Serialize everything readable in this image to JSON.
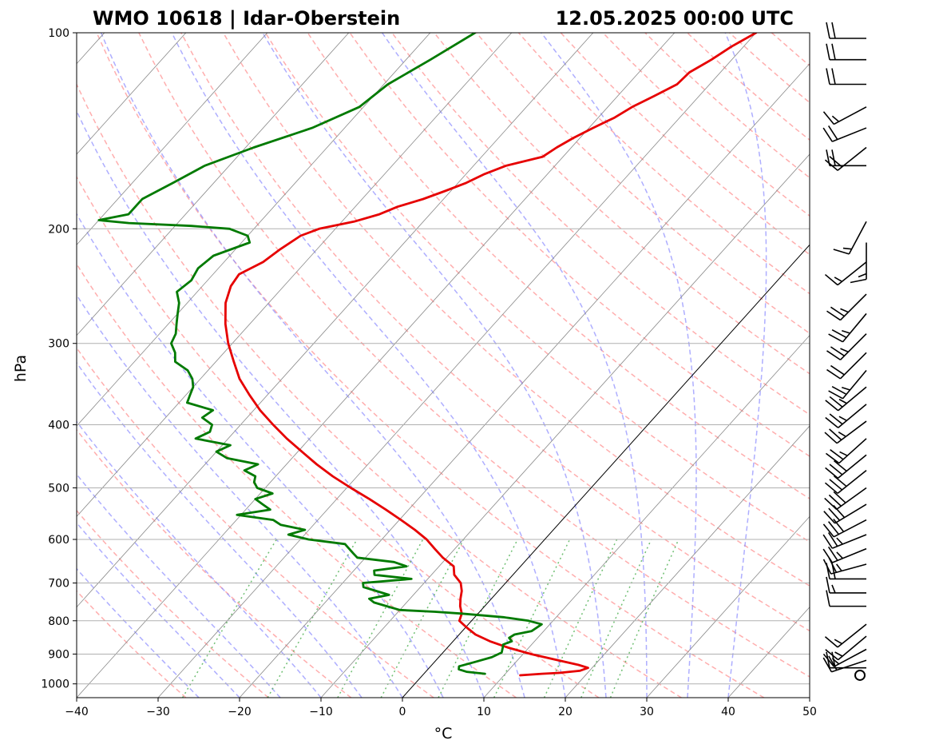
{
  "title_left": "WMO 10618 | Idar-Oberstein",
  "title_right": "12.05.2025 00:00 UTC",
  "chart_data": {
    "type": "line",
    "title": "WMO 10618 | Idar-Oberstein",
    "subtitle": "12.05.2025 00:00 UTC",
    "xlabel": "°C",
    "ylabel": "hPa",
    "xlim": [
      -40,
      50
    ],
    "ylim": [
      1050,
      100
    ],
    "y_scale": "log",
    "x_ticks": [
      "−40",
      "−30",
      "−20",
      "−10",
      "0",
      "10",
      "20",
      "30",
      "40",
      "50"
    ],
    "y_ticks": [
      "100",
      "200",
      "300",
      "400",
      "500",
      "600",
      "700",
      "800",
      "900",
      "1000"
    ],
    "grid": true,
    "colors": {
      "temperature": "#e60000",
      "dewpoint": "#007a00",
      "dry_adiabats": "#ff8c8c",
      "moist_adiabats": "#8c8cff",
      "mixing_ratio": "#4caf50",
      "isotherms": "#888888",
      "zero_isotherm": "#000000"
    },
    "series": [
      {
        "role": "temperature",
        "pressure": [
          970,
          965,
          962,
          955,
          945,
          935,
          920,
          900,
          880,
          860,
          840,
          820,
          800,
          780,
          760,
          740,
          720,
          700,
          680,
          660,
          640,
          620,
          600,
          580,
          560,
          540,
          520,
          500,
          480,
          460,
          440,
          420,
          400,
          380,
          360,
          340,
          320,
          300,
          280,
          260,
          245,
          235,
          225,
          215,
          205,
          200,
          195,
          190,
          185,
          180,
          175,
          170,
          165,
          160,
          155,
          150,
          145,
          140,
          135,
          130,
          125,
          120,
          115,
          110,
          105,
          100
        ],
        "values": [
          12.0,
          14.5,
          16.5,
          18.8,
          19.5,
          18.0,
          15.0,
          11.0,
          7.5,
          4.5,
          2.0,
          0.2,
          -1.5,
          -2.0,
          -3.0,
          -3.8,
          -4.5,
          -5.5,
          -7.2,
          -8.2,
          -10.5,
          -12.5,
          -14.5,
          -17.0,
          -19.8,
          -22.8,
          -26.0,
          -29.5,
          -33.0,
          -36.3,
          -39.5,
          -42.8,
          -46.0,
          -49.2,
          -52.2,
          -55.2,
          -57.8,
          -60.5,
          -63.0,
          -65.3,
          -66.5,
          -66.8,
          -65.2,
          -64.5,
          -63.5,
          -62.0,
          -58.5,
          -56.2,
          -54.8,
          -52.5,
          -50.7,
          -49.0,
          -47.8,
          -46.0,
          -42.5,
          -41.8,
          -40.8,
          -39.5,
          -38.0,
          -37.0,
          -35.5,
          -34.0,
          -33.8,
          -32.5,
          -31.5,
          -30.0
        ]
      },
      {
        "role": "dewpoint",
        "pressure": [
          965,
          958,
          950,
          940,
          925,
          910,
          895,
          880,
          870,
          860,
          850,
          840,
          830,
          810,
          800,
          790,
          780,
          775,
          770,
          760,
          750,
          740,
          730,
          720,
          710,
          700,
          690,
          680,
          670,
          660,
          650,
          640,
          630,
          620,
          610,
          600,
          590,
          580,
          570,
          560,
          550,
          540,
          530,
          520,
          510,
          500,
          490,
          480,
          470,
          460,
          450,
          440,
          430,
          420,
          410,
          400,
          390,
          380,
          370,
          360,
          350,
          340,
          330,
          320,
          310,
          300,
          290,
          280,
          270,
          260,
          250,
          240,
          230,
          220,
          210,
          205,
          200,
          198,
          196,
          194,
          190,
          180,
          170,
          160,
          150,
          140,
          130,
          120,
          110,
          100
        ],
        "values": [
          7.5,
          5.0,
          3.8,
          3.5,
          5.0,
          6.5,
          7.2,
          6.8,
          6.5,
          7.2,
          6.5,
          6.8,
          8.5,
          9.0,
          7.0,
          3.5,
          -2.0,
          -5.5,
          -10.0,
          -12.0,
          -14.0,
          -15.0,
          -13.0,
          -15.0,
          -17.0,
          -17.5,
          -12.0,
          -17.0,
          -17.5,
          -14.0,
          -16.0,
          -21.0,
          -22.0,
          -23.0,
          -24.0,
          -29.0,
          -32.0,
          -30.5,
          -34.0,
          -35.5,
          -40.5,
          -37.0,
          -38.5,
          -40.0,
          -38.5,
          -41.0,
          -42.0,
          -42.5,
          -44.5,
          -43.5,
          -48.0,
          -50.0,
          -49.0,
          -54.0,
          -53.0,
          -53.5,
          -55.5,
          -55.0,
          -59.0,
          -59.5,
          -60.0,
          -61.0,
          -62.5,
          -65.0,
          -66.0,
          -67.5,
          -68.0,
          -69.0,
          -70.0,
          -71.0,
          -72.5,
          -72.0,
          -72.5,
          -72.0,
          -69.0,
          -70.0,
          -73.0,
          -78.0,
          -86.0,
          -90.0,
          -87.0,
          -87.0,
          -85.0,
          -83.0,
          -79.0,
          -74.0,
          -70.5,
          -69.5,
          -67.0,
          -64.5
        ]
      }
    ],
    "wind_barbs": [
      {
        "pressure": 970,
        "u_kt": 0,
        "v_kt": 0
      },
      {
        "pressure": 945,
        "u_kt": 20,
        "v_kt": 0
      },
      {
        "pressure": 920,
        "u_kt": 18,
        "v_kt": 6
      },
      {
        "pressure": 885,
        "u_kt": 15,
        "v_kt": 8
      },
      {
        "pressure": 845,
        "u_kt": 12,
        "v_kt": 10
      },
      {
        "pressure": 810,
        "u_kt": 10,
        "v_kt": 8
      },
      {
        "pressure": 760,
        "u_kt": 12,
        "v_kt": 0
      },
      {
        "pressure": 725,
        "u_kt": 15,
        "v_kt": 0
      },
      {
        "pressure": 690,
        "u_kt": 20,
        "v_kt": 0
      },
      {
        "pressure": 655,
        "u_kt": 22,
        "v_kt": 6
      },
      {
        "pressure": 620,
        "u_kt": 22,
        "v_kt": 9
      },
      {
        "pressure": 590,
        "u_kt": 25,
        "v_kt": 10
      },
      {
        "pressure": 560,
        "u_kt": 25,
        "v_kt": 13
      },
      {
        "pressure": 530,
        "u_kt": 25,
        "v_kt": 15
      },
      {
        "pressure": 500,
        "u_kt": 25,
        "v_kt": 18
      },
      {
        "pressure": 470,
        "u_kt": 25,
        "v_kt": 20
      },
      {
        "pressure": 445,
        "u_kt": 22,
        "v_kt": 18
      },
      {
        "pressure": 420,
        "u_kt": 20,
        "v_kt": 18
      },
      {
        "pressure": 395,
        "u_kt": 20,
        "v_kt": 15
      },
      {
        "pressure": 372,
        "u_kt": 18,
        "v_kt": 15
      },
      {
        "pressure": 350,
        "u_kt": 18,
        "v_kt": 15
      },
      {
        "pressure": 330,
        "u_kt": 15,
        "v_kt": 18
      },
      {
        "pressure": 310,
        "u_kt": 15,
        "v_kt": 15
      },
      {
        "pressure": 290,
        "u_kt": 18,
        "v_kt": 18
      },
      {
        "pressure": 270,
        "u_kt": 15,
        "v_kt": 18
      },
      {
        "pressure": 252,
        "u_kt": 18,
        "v_kt": 18
      },
      {
        "pressure": 225,
        "u_kt": 10,
        "v_kt": 8
      },
      {
        "pressure": 210,
        "u_kt": 0,
        "v_kt": 15
      },
      {
        "pressure": 195,
        "u_kt": 8,
        "v_kt": 15
      },
      {
        "pressure": 160,
        "u_kt": 18,
        "v_kt": 0
      },
      {
        "pressure": 150,
        "u_kt": 15,
        "v_kt": 12
      },
      {
        "pressure": 140,
        "u_kt": 20,
        "v_kt": 8
      },
      {
        "pressure": 130,
        "u_kt": 15,
        "v_kt": 8
      },
      {
        "pressure": 120,
        "u_kt": 18,
        "v_kt": 0
      },
      {
        "pressure": 110,
        "u_kt": 20,
        "v_kt": 0
      },
      {
        "pressure": 102,
        "u_kt": 20,
        "v_kt": 0
      }
    ]
  }
}
